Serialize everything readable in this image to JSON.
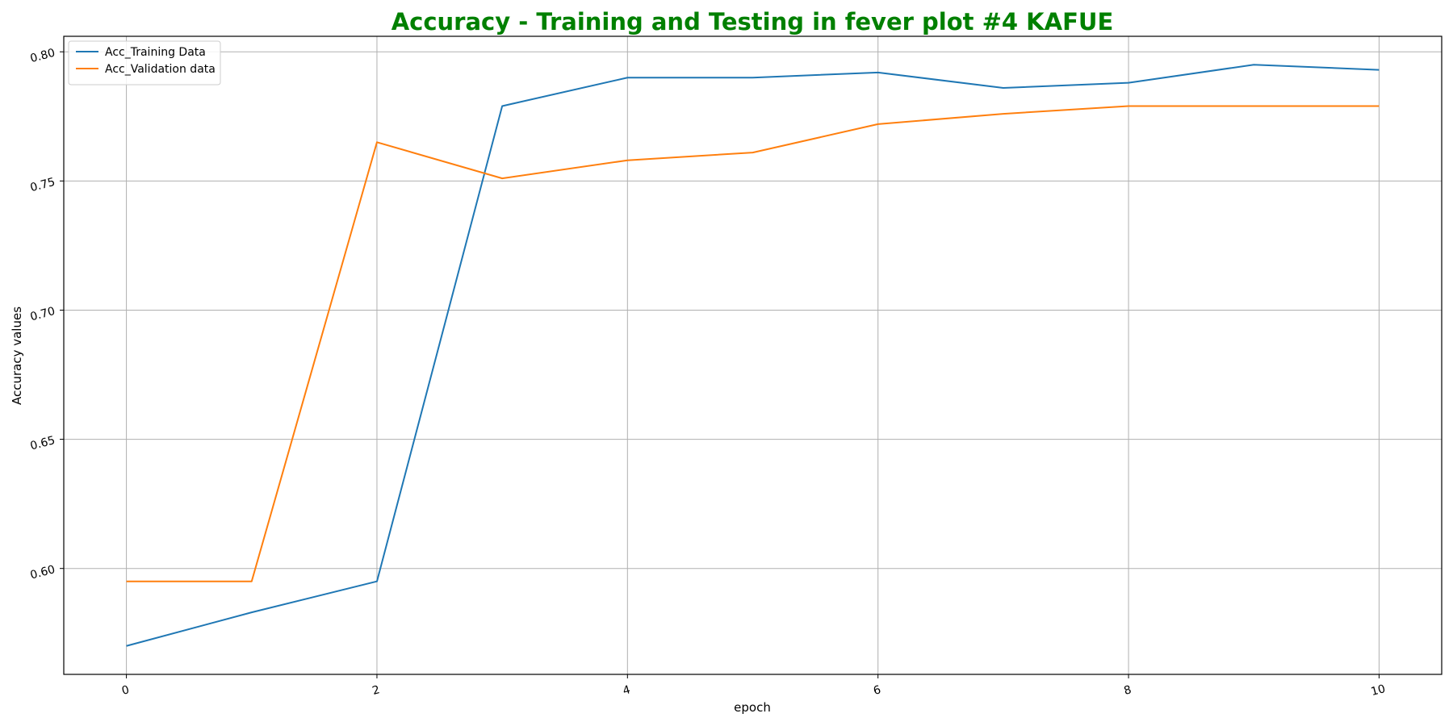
{
  "chart_data": {
    "type": "line",
    "title": "Accuracy - Training and Testing in fever plot #4 KAFUE",
    "title_color": "#008000",
    "xlabel": "epoch",
    "ylabel": "Accuracy values",
    "xlim": [
      -0.5,
      10.5
    ],
    "ylim": [
      0.559,
      0.806
    ],
    "x_ticks": [
      0,
      2,
      4,
      6,
      8,
      10
    ],
    "x_tick_labels": [
      "0",
      "2",
      "4",
      "6",
      "8",
      "10"
    ],
    "y_ticks": [
      0.6,
      0.65,
      0.7,
      0.75,
      0.8
    ],
    "y_tick_labels": [
      "0.60",
      "0.65",
      "0.70",
      "0.75",
      "0.80"
    ],
    "grid": true,
    "legend_position": "top-left",
    "x": [
      0,
      1,
      2,
      3,
      4,
      5,
      6,
      7,
      8,
      9,
      10
    ],
    "series": [
      {
        "name": "Acc_Training Data",
        "color": "#1f77b4",
        "values": [
          0.57,
          0.583,
          0.595,
          0.779,
          0.79,
          0.79,
          0.792,
          0.786,
          0.788,
          0.795,
          0.793
        ]
      },
      {
        "name": "Acc_Validation data",
        "color": "#ff7f0e",
        "values": [
          0.595,
          0.595,
          0.765,
          0.751,
          0.758,
          0.761,
          0.772,
          0.776,
          0.779,
          0.779,
          0.779
        ]
      }
    ]
  }
}
